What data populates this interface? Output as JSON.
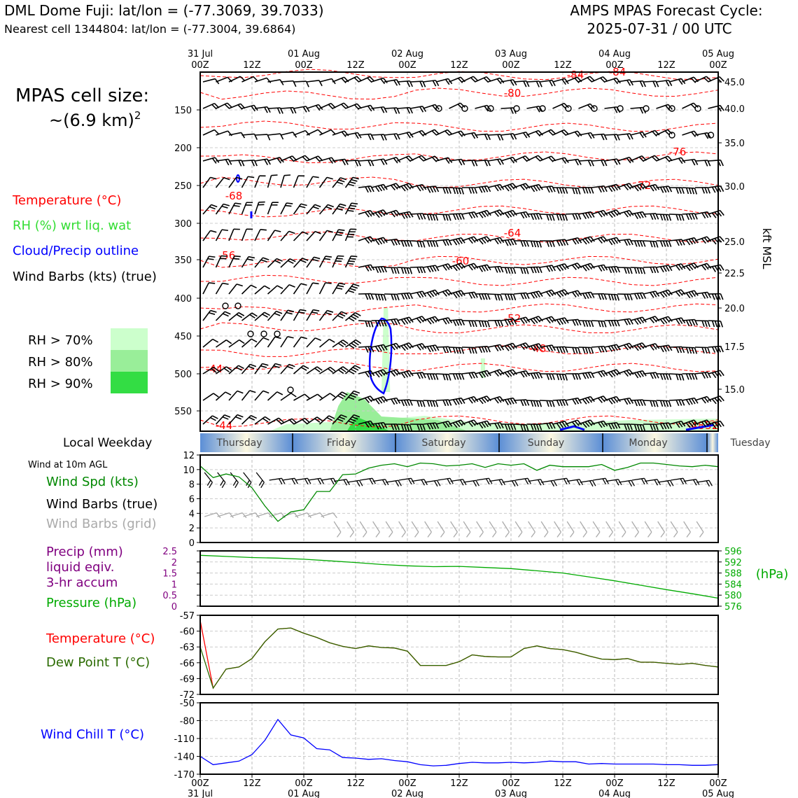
{
  "header": {
    "station": "DML Dome Fuji: lat/lon = (-77.3069, 39.7033)",
    "nearest": "Nearest cell 1344804: lat/lon = (-77.3004, 39.6864)",
    "cycle_title": "AMPS MPAS Forecast Cycle:",
    "cycle_value": "2025-07-31 / 00 UTC"
  },
  "left_panel": {
    "cell_size_label": "MPAS cell size:",
    "cell_size_value": "~(6.9 km)",
    "cell_size_exp": "2",
    "legend_temperature": "Temperature (°C)",
    "legend_rh": "RH (%) wrt liq. wat",
    "legend_cloud": "Cloud/Precip outline",
    "legend_barbs": "Wind Barbs (kts) (true)",
    "rh_bins": [
      "RH > 70%",
      "RH > 80%",
      "RH > 90%"
    ],
    "local_weekday": "Local Weekday",
    "wind_10m": "Wind at 10m AGL",
    "wind_spd": "Wind Spd (kts)",
    "wind_barbs_true": "Wind Barbs (true)",
    "wind_barbs_grid": "Wind Barbs (grid)",
    "precip_1": "Precip (mm)",
    "precip_2": "liquid eqiv.",
    "precip_3": "3-hr accum",
    "pressure": "Pressure (hPa)",
    "temperature": "Temperature (°C)",
    "dewpoint": "Dew Point T (°C)",
    "windchill": "Wind Chill T (°C)"
  },
  "colors": {
    "temperature": "#ff0000",
    "rh": "#33dd33",
    "cloud": "#0000ff",
    "barbs": "#000000",
    "barbs_grid": "#aaaaaa",
    "precip": "#800080",
    "pressure": "#00aa00",
    "dewpoint": "#2a6a00",
    "windchill": "#0000ff",
    "rh70": "#ccffcc",
    "rh80": "#99ee99",
    "rh90": "#33dd44"
  },
  "time_axis": {
    "ticks": [
      "00Z",
      "12Z",
      "00Z",
      "12Z",
      "00Z",
      "12Z",
      "00Z",
      "12Z",
      "00Z",
      "12Z",
      "00Z"
    ],
    "top_dates": [
      "31 Jul",
      "",
      "01 Aug",
      "",
      "02 Aug",
      "",
      "03 Aug",
      "",
      "04 Aug",
      "",
      "05 Aug"
    ],
    "bottom_dates": [
      "31 Jul",
      "",
      "01 Aug",
      "",
      "02 Aug",
      "",
      "03 Aug",
      "",
      "04 Aug",
      "",
      "05 Aug"
    ]
  },
  "weekdays": [
    "Thursday",
    "Friday",
    "Saturday",
    "Sunday",
    "Monday",
    "Tuesday"
  ],
  "upper_axes": {
    "pressure_ticks": [
      "150",
      "200",
      "250",
      "300",
      "350",
      "400",
      "450",
      "500",
      "550"
    ],
    "kft_ticks": [
      "45.0",
      "40.0",
      "35.0",
      "30.0",
      "25.0",
      "22.5",
      "20.0",
      "17.5",
      "15.0"
    ],
    "kft_label": "kft MSL",
    "temp_labels": [
      "-84",
      "-84",
      "-80",
      "-76",
      "-72",
      "-68",
      "-64",
      "-60",
      "-56",
      "-52",
      "-48",
      "-44",
      "-44",
      "-48",
      "-52"
    ]
  },
  "chart_data": [
    {
      "type": "line",
      "panel": "upper_air_time_height",
      "title": "",
      "ylabel": "kft MSL",
      "pressure_ticks": [
        150,
        200,
        250,
        300,
        350,
        400,
        450,
        500,
        550
      ],
      "kft_ticks": [
        45.0,
        40.0,
        35.0,
        30.0,
        25.0,
        22.5,
        20.0,
        17.5,
        15.0
      ],
      "isotherm_labels_c": [
        -84,
        -84,
        -80,
        -76,
        -72,
        -68,
        -64,
        -60,
        -56,
        -52,
        -48,
        -44,
        -44,
        -48,
        -52
      ]
    },
    {
      "type": "line",
      "panel": "wind_10m",
      "ylim": [
        0,
        12
      ],
      "yticks": [
        0,
        2,
        4,
        6,
        8,
        10,
        12
      ],
      "x_hours": [
        0,
        3,
        6,
        9,
        12,
        15,
        18,
        21,
        24,
        27,
        30,
        33,
        36,
        39,
        42,
        45,
        48,
        51,
        54,
        57,
        60,
        63,
        66,
        69,
        72,
        75,
        78,
        81,
        84,
        87,
        90,
        93,
        96,
        99,
        102,
        105,
        108,
        111,
        114,
        117,
        120
      ],
      "series": [
        {
          "name": "Wind Spd (kts)",
          "values": [
            10.5,
            8.9,
            9.4,
            9.0,
            7.5,
            5.0,
            2.9,
            4.2,
            4.5,
            7.0,
            7.0,
            9.3,
            9.4,
            10.2,
            10.6,
            10.8,
            10.4,
            10.9,
            10.8,
            10.5,
            10.6,
            10.8,
            10.3,
            10.8,
            10.6,
            10.8,
            9.9,
            10.6,
            10.4,
            10.4,
            10.4,
            10.7,
            9.9,
            10.3,
            10.9,
            10.9,
            10.7,
            10.5,
            10.4,
            10.6,
            10.4
          ]
        }
      ]
    },
    {
      "type": "line",
      "panel": "precip_pressure",
      "ylim_precip": [
        0,
        2.5
      ],
      "yticks_precip": [
        0,
        0.5,
        1.0,
        1.5,
        2.0,
        2.5
      ],
      "ylim_pressure": [
        576,
        596
      ],
      "yticks_pressure": [
        576,
        580,
        584,
        588,
        592,
        596
      ],
      "x_hours": [
        0,
        6,
        12,
        18,
        24,
        30,
        36,
        42,
        48,
        54,
        60,
        66,
        72,
        78,
        84,
        90,
        96,
        102,
        108,
        114,
        120
      ],
      "series": [
        {
          "name": "Pressure (hPa)",
          "values": [
            594.4,
            594.0,
            593.6,
            593.4,
            593.0,
            592.4,
            591.8,
            591.1,
            590.6,
            590.3,
            590.4,
            590.0,
            589.6,
            588.8,
            588.0,
            586.6,
            585.2,
            583.6,
            582.0,
            580.5,
            578.9
          ]
        }
      ]
    },
    {
      "type": "line",
      "panel": "temperature_dewpoint",
      "ylim": [
        -72,
        -57
      ],
      "yticks": [
        -72,
        -69,
        -66,
        -63,
        -60,
        -57
      ],
      "x_hours": [
        0,
        3,
        6,
        9,
        12,
        15,
        18,
        21,
        24,
        27,
        30,
        33,
        36,
        39,
        42,
        45,
        48,
        51,
        54,
        57,
        60,
        63,
        66,
        69,
        72,
        75,
        78,
        81,
        84,
        87,
        90,
        93,
        96,
        99,
        102,
        105,
        108,
        111,
        114,
        117,
        120
      ],
      "series": [
        {
          "name": "Temperature (°C)",
          "values": [
            -58,
            -70.8,
            -67.2,
            -66.8,
            -65.2,
            -62.0,
            -59.6,
            -59.4,
            -60.4,
            -61.2,
            -62.2,
            -62.9,
            -63.3,
            -62.8,
            -63.1,
            -63.2,
            -63.8,
            -66.5,
            -66.5,
            -66.5,
            -65.8,
            -64.5,
            -64.8,
            -64.9,
            -64.9,
            -63.3,
            -62.8,
            -63.3,
            -63.5,
            -64.0,
            -64.7,
            -65.3,
            -65.4,
            -65.2,
            -65.9,
            -65.9,
            -66.1,
            -66.3,
            -66.1,
            -66.5,
            -66.8
          ]
        },
        {
          "name": "Dew Point T (°C)",
          "values": [
            -63,
            -70.8,
            -67.2,
            -66.8,
            -65.2,
            -62.0,
            -59.6,
            -59.4,
            -60.4,
            -61.2,
            -62.2,
            -62.9,
            -63.3,
            -62.8,
            -63.1,
            -63.2,
            -63.8,
            -66.5,
            -66.5,
            -66.5,
            -65.8,
            -64.5,
            -64.8,
            -64.9,
            -64.9,
            -63.3,
            -62.8,
            -63.3,
            -63.5,
            -64.0,
            -64.7,
            -65.3,
            -65.4,
            -65.2,
            -65.9,
            -65.9,
            -66.1,
            -66.3,
            -66.1,
            -66.5,
            -66.8
          ]
        }
      ]
    },
    {
      "type": "line",
      "panel": "wind_chill",
      "ylim": [
        -170,
        -50
      ],
      "yticks": [
        -170,
        -140,
        -110,
        -80,
        -50
      ],
      "x_hours": [
        0,
        3,
        6,
        9,
        12,
        15,
        18,
        21,
        24,
        27,
        30,
        33,
        36,
        39,
        42,
        45,
        48,
        51,
        54,
        57,
        60,
        63,
        66,
        69,
        72,
        75,
        78,
        81,
        84,
        87,
        90,
        93,
        96,
        99,
        102,
        105,
        108,
        111,
        114,
        117,
        120
      ],
      "series": [
        {
          "name": "Wind Chill T (°C)",
          "values": [
            -140,
            -154,
            -151,
            -148,
            -137,
            -113,
            -78,
            -104,
            -109,
            -127,
            -129,
            -142,
            -143,
            -145,
            -144,
            -147,
            -149,
            -154,
            -156,
            -155,
            -152,
            -150,
            -151,
            -151,
            -150,
            -151,
            -150,
            -148,
            -149,
            -149,
            -153,
            -152,
            -153,
            -153,
            -153,
            -153,
            -154,
            -154,
            -155,
            -155,
            -154
          ]
        }
      ]
    }
  ]
}
